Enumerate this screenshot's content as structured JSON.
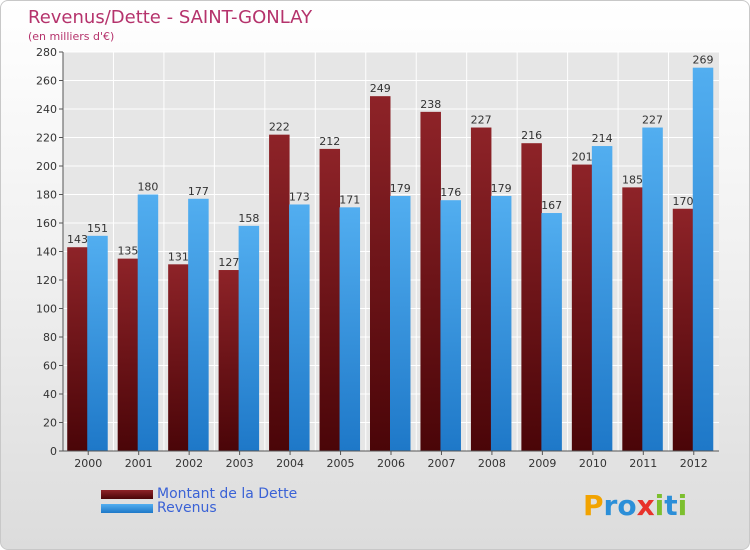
{
  "header": {
    "title": "Revenus/Dette - SAINT-GONLAY",
    "subtitle": "(en milliers d'€)"
  },
  "legend": {
    "debt_label": "Montant de la Dette",
    "revenue_label": "Revenus"
  },
  "logo": {
    "letters": [
      "P",
      "r",
      "o",
      "x",
      "i",
      "t",
      "i"
    ],
    "colors": [
      "#f2a300",
      "#2c8fd8",
      "#2c8fd8",
      "#e8322b",
      "#7cbf2e",
      "#2c8fd8",
      "#7cbf2e"
    ]
  },
  "colors": {
    "debt": "#8b1a1f",
    "debt_dark": "#5a0d10",
    "revenue": "#2e8fdf",
    "revenue_light": "#6ab8f0",
    "grid": "#ffffff",
    "axis_text": "#333333"
  },
  "chart_data": {
    "type": "bar",
    "title": "Revenus/Dette - SAINT-GONLAY",
    "subtitle": "(en milliers d'€)",
    "xlabel": "",
    "ylabel": "",
    "ylim": [
      0,
      280
    ],
    "ytick_step": 20,
    "legend_position": "bottom-left",
    "categories": [
      "2000",
      "2001",
      "2002",
      "2003",
      "2004",
      "2005",
      "2006",
      "2007",
      "2008",
      "2009",
      "2010",
      "2011",
      "2012"
    ],
    "series": [
      {
        "name": "Montant de la Dette",
        "values": [
          143,
          135,
          131,
          127,
          222,
          212,
          249,
          238,
          227,
          216,
          201,
          185,
          170
        ]
      },
      {
        "name": "Revenus",
        "values": [
          151,
          180,
          177,
          158,
          173,
          171,
          179,
          176,
          179,
          167,
          214,
          227,
          269
        ]
      }
    ]
  }
}
